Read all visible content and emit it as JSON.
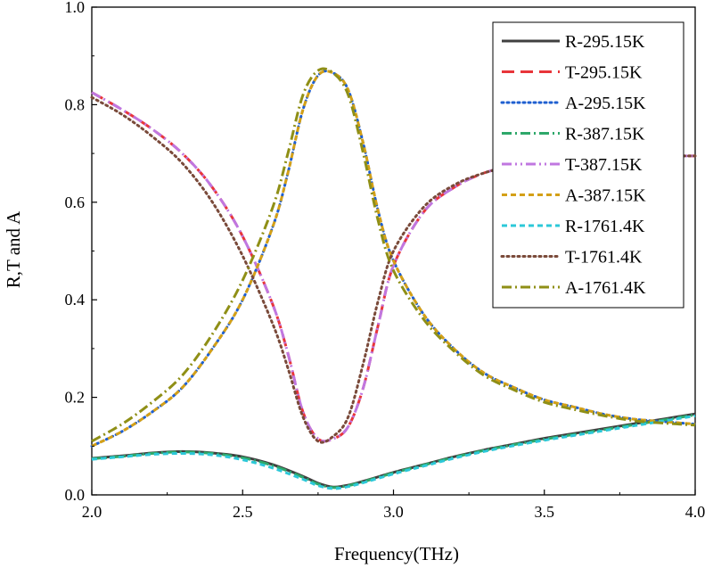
{
  "chart_data": {
    "type": "line",
    "title": "",
    "xlabel": "Frequency(THz)",
    "ylabel": "R,T and A",
    "xlim": [
      2.0,
      4.0
    ],
    "ylim": [
      0.0,
      1.0
    ],
    "xticks": [
      2.0,
      2.5,
      3.0,
      3.5,
      4.0
    ],
    "xtick_labels": [
      "2.0",
      "2.5",
      "3.0",
      "3.5",
      "4.0"
    ],
    "yticks": [
      0.0,
      0.2,
      0.4,
      0.6,
      0.8,
      1.0
    ],
    "ytick_labels": [
      "0.0",
      "0.2",
      "0.4",
      "0.6",
      "0.8",
      "1.0"
    ],
    "grid": false,
    "legend_position": "top-right",
    "series": [
      {
        "name": "R-295.15K",
        "color": "#404040",
        "dash": "solid",
        "x": [
          2.0,
          2.1,
          2.2,
          2.3,
          2.4,
          2.5,
          2.6,
          2.7,
          2.75,
          2.8,
          2.85,
          2.9,
          3.0,
          3.1,
          3.2,
          3.3,
          3.4,
          3.5,
          3.6,
          3.7,
          3.8,
          3.9,
          4.0
        ],
        "y": [
          0.075,
          0.08,
          0.086,
          0.089,
          0.086,
          0.078,
          0.062,
          0.038,
          0.024,
          0.016,
          0.02,
          0.028,
          0.046,
          0.062,
          0.078,
          0.092,
          0.104,
          0.116,
          0.126,
          0.136,
          0.146,
          0.156,
          0.166
        ]
      },
      {
        "name": "T-295.15K",
        "color": "#e8353a",
        "dash": "long-dash",
        "x": [
          2.0,
          2.1,
          2.2,
          2.3,
          2.4,
          2.5,
          2.6,
          2.65,
          2.7,
          2.75,
          2.8,
          2.85,
          2.9,
          2.95,
          3.0,
          3.1,
          3.2,
          3.3,
          3.4,
          3.5,
          3.6,
          3.7,
          3.8,
          3.9,
          4.0
        ],
        "y": [
          0.825,
          0.79,
          0.75,
          0.7,
          0.63,
          0.53,
          0.39,
          0.29,
          0.17,
          0.115,
          0.115,
          0.14,
          0.22,
          0.35,
          0.47,
          0.58,
          0.63,
          0.66,
          0.675,
          0.685,
          0.69,
          0.695,
          0.695,
          0.695,
          0.695
        ]
      },
      {
        "name": "A-295.15K",
        "color": "#1f5fd0",
        "dash": "dot",
        "x": [
          2.0,
          2.1,
          2.2,
          2.3,
          2.4,
          2.5,
          2.6,
          2.65,
          2.7,
          2.75,
          2.8,
          2.85,
          2.9,
          2.95,
          3.0,
          3.1,
          3.2,
          3.3,
          3.4,
          3.5,
          3.6,
          3.7,
          3.8,
          3.9,
          4.0
        ],
        "y": [
          0.1,
          0.13,
          0.17,
          0.22,
          0.3,
          0.4,
          0.55,
          0.66,
          0.79,
          0.86,
          0.865,
          0.83,
          0.72,
          0.58,
          0.48,
          0.37,
          0.3,
          0.25,
          0.22,
          0.195,
          0.18,
          0.165,
          0.155,
          0.15,
          0.145
        ]
      },
      {
        "name": "R-387.15K",
        "color": "#2ea86a",
        "dash": "dash-dot",
        "x": [
          2.0,
          2.1,
          2.2,
          2.3,
          2.4,
          2.5,
          2.6,
          2.7,
          2.75,
          2.8,
          2.85,
          2.9,
          3.0,
          3.1,
          3.2,
          3.3,
          3.4,
          3.5,
          3.6,
          3.7,
          3.8,
          3.9,
          4.0
        ],
        "y": [
          0.074,
          0.079,
          0.085,
          0.088,
          0.085,
          0.076,
          0.06,
          0.036,
          0.022,
          0.015,
          0.019,
          0.027,
          0.045,
          0.061,
          0.077,
          0.091,
          0.103,
          0.114,
          0.124,
          0.134,
          0.144,
          0.154,
          0.164
        ]
      },
      {
        "name": "T-387.15K",
        "color": "#c077e0",
        "dash": "dash-dot-dot",
        "x": [
          2.0,
          2.1,
          2.2,
          2.3,
          2.4,
          2.5,
          2.6,
          2.65,
          2.7,
          2.75,
          2.8,
          2.85,
          2.9,
          2.95,
          3.0,
          3.1,
          3.2,
          3.3,
          3.4,
          3.5,
          3.6,
          3.7,
          3.8,
          3.9,
          4.0
        ],
        "y": [
          0.825,
          0.79,
          0.75,
          0.7,
          0.63,
          0.53,
          0.39,
          0.29,
          0.17,
          0.115,
          0.115,
          0.14,
          0.22,
          0.35,
          0.47,
          0.58,
          0.63,
          0.66,
          0.675,
          0.685,
          0.69,
          0.695,
          0.695,
          0.695,
          0.695
        ]
      },
      {
        "name": "A-387.15K",
        "color": "#d4a017",
        "dash": "short-dash",
        "x": [
          2.0,
          2.1,
          2.2,
          2.3,
          2.4,
          2.5,
          2.6,
          2.65,
          2.7,
          2.75,
          2.8,
          2.85,
          2.9,
          2.95,
          3.0,
          3.1,
          3.2,
          3.3,
          3.4,
          3.5,
          3.6,
          3.7,
          3.8,
          3.9,
          4.0
        ],
        "y": [
          0.1,
          0.13,
          0.17,
          0.22,
          0.3,
          0.4,
          0.55,
          0.66,
          0.79,
          0.86,
          0.865,
          0.83,
          0.72,
          0.58,
          0.48,
          0.37,
          0.3,
          0.25,
          0.22,
          0.195,
          0.18,
          0.165,
          0.155,
          0.15,
          0.145
        ]
      },
      {
        "name": "R-1761.4K",
        "color": "#2cc8d8",
        "dash": "short-dash",
        "x": [
          2.0,
          2.1,
          2.2,
          2.3,
          2.4,
          2.5,
          2.6,
          2.7,
          2.75,
          2.8,
          2.85,
          2.9,
          3.0,
          3.1,
          3.2,
          3.3,
          3.4,
          3.5,
          3.6,
          3.7,
          3.8,
          3.9,
          4.0
        ],
        "y": [
          0.073,
          0.078,
          0.083,
          0.085,
          0.082,
          0.072,
          0.055,
          0.032,
          0.019,
          0.013,
          0.017,
          0.025,
          0.043,
          0.059,
          0.075,
          0.089,
          0.101,
          0.112,
          0.122,
          0.132,
          0.142,
          0.152,
          0.162
        ]
      },
      {
        "name": "T-1761.4K",
        "color": "#7a4a3a",
        "dash": "dot",
        "x": [
          2.0,
          2.1,
          2.2,
          2.3,
          2.4,
          2.5,
          2.6,
          2.65,
          2.7,
          2.75,
          2.8,
          2.85,
          2.9,
          2.95,
          3.0,
          3.1,
          3.2,
          3.3,
          3.4,
          3.5,
          3.6,
          3.7,
          3.8,
          3.9,
          4.0
        ],
        "y": [
          0.815,
          0.78,
          0.735,
          0.68,
          0.6,
          0.49,
          0.35,
          0.26,
          0.16,
          0.11,
          0.12,
          0.16,
          0.27,
          0.4,
          0.5,
          0.59,
          0.635,
          0.66,
          0.675,
          0.685,
          0.69,
          0.695,
          0.695,
          0.695,
          0.695
        ]
      },
      {
        "name": "A-1761.4K",
        "color": "#8f8f16",
        "dash": "dash-dot",
        "x": [
          2.0,
          2.1,
          2.2,
          2.3,
          2.4,
          2.5,
          2.6,
          2.65,
          2.7,
          2.75,
          2.8,
          2.85,
          2.9,
          2.95,
          3.0,
          3.1,
          3.2,
          3.3,
          3.4,
          3.5,
          3.6,
          3.7,
          3.8,
          3.9,
          4.0
        ],
        "y": [
          0.11,
          0.145,
          0.19,
          0.245,
          0.33,
          0.44,
          0.59,
          0.7,
          0.82,
          0.87,
          0.865,
          0.82,
          0.7,
          0.56,
          0.46,
          0.36,
          0.295,
          0.245,
          0.215,
          0.19,
          0.175,
          0.162,
          0.152,
          0.147,
          0.143
        ]
      }
    ]
  }
}
